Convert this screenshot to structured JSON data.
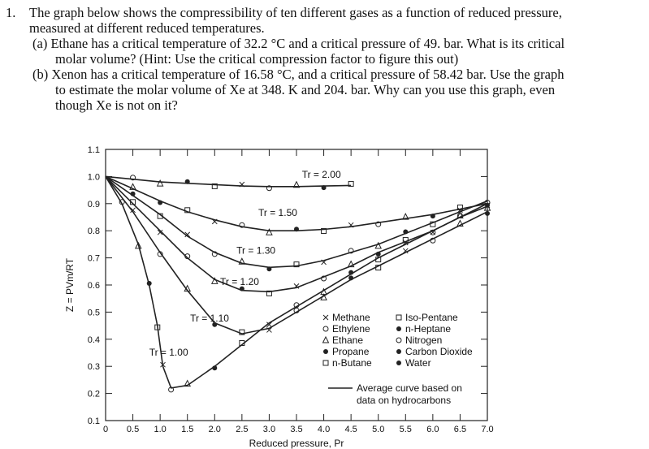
{
  "problem": {
    "number": "1.",
    "lines": [
      "The graph below shows the compressibility of ten different gases as a function of reduced pressure,",
      "measured at different reduced temperatures.",
      "(a)  Ethane has a critical temperature of 32.2 °C and a critical pressure of 49. bar.  What is its critical",
      "molar volume?  (Hint: Use the critical compression factor to figure this out)",
      "(b)  Xenon has a critical temperature of 16.58 °C, and a critical pressure of 58.42 bar.  Use the graph",
      "to estimate the molar volume of Xe at 348. K and 204. bar. Why can you use this graph, even",
      "though Xe is not on it?"
    ]
  },
  "chart_data": {
    "type": "line",
    "xlabel": "Reduced pressure, Pr",
    "ylabel": "Z = PVm/RT",
    "xlim": [
      0,
      7.0
    ],
    "ylim": [
      0.1,
      1.1
    ],
    "x_ticks": [
      "0",
      "0.5",
      "1.0",
      "1.5",
      "2.0",
      "2.5",
      "3.0",
      "3.5",
      "4.0",
      "4.5",
      "5.0",
      "5.5",
      "6.0",
      "6.5",
      "7.0"
    ],
    "y_ticks": [
      "0.1",
      "0.2",
      "0.3",
      "0.4",
      "0.5",
      "0.6",
      "0.7",
      "0.8",
      "0.9",
      "1.0",
      "1.1"
    ],
    "series": [
      {
        "name": "Tr = 2.00",
        "x": [
          0,
          0.5,
          1,
          1.5,
          2,
          2.5,
          3,
          3.5,
          4,
          4.5
        ],
        "y": [
          1.0,
          0.99,
          0.98,
          0.975,
          0.97,
          0.965,
          0.963,
          0.963,
          0.965,
          0.967
        ]
      },
      {
        "name": "Tr = 1.50",
        "x": [
          0,
          0.5,
          1,
          1.5,
          2,
          2.5,
          3,
          3.5,
          4,
          4.5,
          5,
          5.5,
          6,
          6.5,
          7
        ],
        "y": [
          1.0,
          0.955,
          0.91,
          0.87,
          0.84,
          0.815,
          0.8,
          0.8,
          0.805,
          0.815,
          0.83,
          0.845,
          0.86,
          0.88,
          0.9
        ]
      },
      {
        "name": "Tr = 1.30",
        "x": [
          0,
          0.5,
          1,
          1.5,
          2,
          2.5,
          3,
          3.5,
          4,
          4.5,
          5,
          5.5,
          6,
          6.5,
          7
        ],
        "y": [
          1.0,
          0.93,
          0.86,
          0.78,
          0.72,
          0.68,
          0.665,
          0.67,
          0.69,
          0.72,
          0.75,
          0.79,
          0.83,
          0.87,
          0.91
        ]
      },
      {
        "name": "Tr = 1.20",
        "x": [
          0,
          0.5,
          1,
          1.5,
          2,
          2.5,
          3,
          3.5,
          4,
          4.5,
          5,
          5.5,
          6,
          6.5,
          7
        ],
        "y": [
          1.0,
          0.9,
          0.8,
          0.7,
          0.62,
          0.58,
          0.575,
          0.59,
          0.63,
          0.67,
          0.72,
          0.76,
          0.8,
          0.85,
          0.89
        ]
      },
      {
        "name": "Tr = 1.10",
        "x": [
          0,
          0.5,
          1,
          1.5,
          2,
          2.5,
          3,
          3.5,
          4,
          4.5,
          5,
          5.5,
          6,
          6.5,
          7
        ],
        "y": [
          1.0,
          0.87,
          0.72,
          0.58,
          0.46,
          0.42,
          0.44,
          0.5,
          0.56,
          0.62,
          0.67,
          0.72,
          0.77,
          0.82,
          0.87
        ]
      },
      {
        "name": "Tr = 1.00",
        "x": [
          0,
          0.3,
          0.6,
          0.8,
          0.95,
          1.05,
          1.2,
          1.5,
          2,
          2.5,
          3,
          3.5,
          4,
          4.5,
          5,
          5.5,
          6,
          6.5,
          7
        ],
        "y": [
          1.0,
          0.9,
          0.75,
          0.6,
          0.45,
          0.3,
          0.22,
          0.23,
          0.3,
          0.38,
          0.46,
          0.52,
          0.58,
          0.64,
          0.7,
          0.75,
          0.8,
          0.85,
          0.9
        ]
      }
    ],
    "curve_labels": [
      {
        "text": "Tr = 2.00",
        "x": 3.6,
        "y": 0.995
      },
      {
        "text": "Tr = 1.50",
        "x": 2.8,
        "y": 0.855
      },
      {
        "text": "Tr = 1.30",
        "x": 2.4,
        "y": 0.715
      },
      {
        "text": "Tr = 1.20",
        "x": 2.1,
        "y": 0.6
      },
      {
        "text": "Tr = 1.10",
        "x": 1.55,
        "y": 0.465
      },
      {
        "text": "Tr = 1.00",
        "x": 0.8,
        "y": 0.34
      }
    ],
    "legend": {
      "col1": [
        "Methane",
        "Ethylene",
        "Ethane",
        "Propane",
        "n-Butane"
      ],
      "col2": [
        "Iso-Pentane",
        "n-Heptane",
        "Nitrogen",
        "Carbon Dioxide",
        "Water"
      ],
      "avg_line_1": "Average curve based on",
      "avg_line_2": "data on hydrocarbons"
    }
  }
}
